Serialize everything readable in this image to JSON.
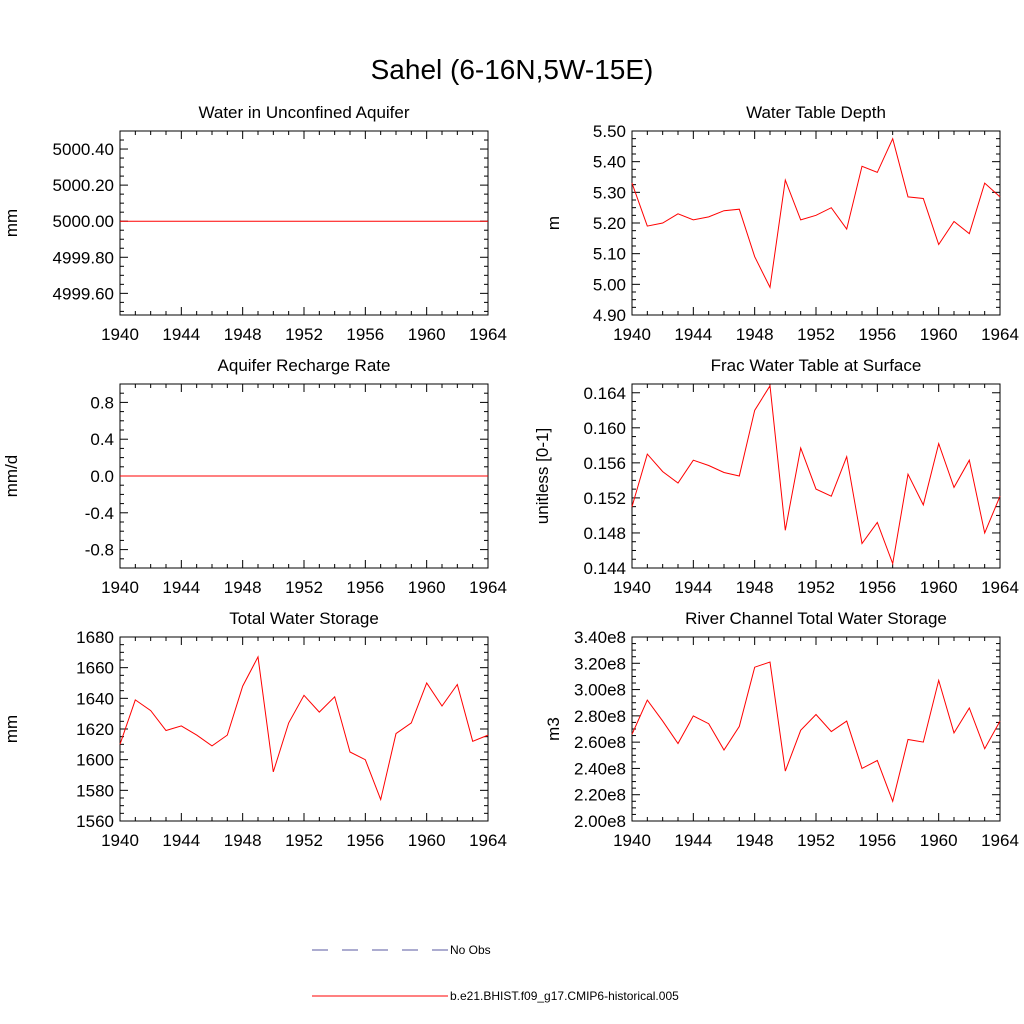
{
  "title": "Sahel (6-16N,5W-15E)",
  "colors": {
    "model": "#ff0000",
    "obs": "#5a5aa0",
    "axis": "#000000"
  },
  "legend": [
    {
      "label": "No Obs",
      "style": "dashed",
      "color": "#5a5aa0"
    },
    {
      "label": "b.e21.BHIST.f09_g17.CMIP6-historical.005",
      "style": "solid",
      "color": "#ff0000"
    }
  ],
  "chart_data": [
    {
      "type": "line",
      "title": "Water in Unconfined Aquifer",
      "ylabel": "mm",
      "xlim": [
        1940,
        1964
      ],
      "ylim": [
        4999.48,
        5000.5
      ],
      "xticks": [
        "1940",
        "1944",
        "1948",
        "1952",
        "1956",
        "1960",
        "1964"
      ],
      "yticks": [
        "4999.60",
        "4999.80",
        "5000.00",
        "5000.20",
        "5000.40"
      ],
      "x": [
        1940,
        1941,
        1942,
        1943,
        1944,
        1945,
        1946,
        1947,
        1948,
        1949,
        1950,
        1951,
        1952,
        1953,
        1954,
        1955,
        1956,
        1957,
        1958,
        1959,
        1960,
        1961,
        1962,
        1963,
        1964
      ],
      "series": [
        {
          "values": [
            5000,
            5000,
            5000,
            5000,
            5000,
            5000,
            5000,
            5000,
            5000,
            5000,
            5000,
            5000,
            5000,
            5000,
            5000,
            5000,
            5000,
            5000,
            5000,
            5000,
            5000,
            5000,
            5000,
            5000,
            5000
          ]
        }
      ]
    },
    {
      "type": "line",
      "title": "Water Table Depth",
      "ylabel": "m",
      "xlim": [
        1940,
        1964
      ],
      "ylim": [
        4.9,
        5.5
      ],
      "xticks": [
        "1940",
        "1944",
        "1948",
        "1952",
        "1956",
        "1960",
        "1964"
      ],
      "yticks": [
        "4.90",
        "5.00",
        "5.10",
        "5.20",
        "5.30",
        "5.40",
        "5.50"
      ],
      "x": [
        1940,
        1941,
        1942,
        1943,
        1944,
        1945,
        1946,
        1947,
        1948,
        1949,
        1950,
        1951,
        1952,
        1953,
        1954,
        1955,
        1956,
        1957,
        1958,
        1959,
        1960,
        1961,
        1962,
        1963,
        1964
      ],
      "series": [
        {
          "values": [
            5.33,
            5.19,
            5.2,
            5.23,
            5.21,
            5.22,
            5.24,
            5.245,
            5.09,
            4.99,
            5.34,
            5.21,
            5.225,
            5.25,
            5.18,
            5.385,
            5.365,
            5.475,
            5.285,
            5.28,
            5.13,
            5.205,
            5.165,
            5.33,
            5.285
          ]
        }
      ]
    },
    {
      "type": "line",
      "title": "Aquifer Recharge Rate",
      "ylabel": "mm/d",
      "xlim": [
        1940,
        1964
      ],
      "ylim": [
        -1.0,
        1.0
      ],
      "xticks": [
        "1940",
        "1944",
        "1948",
        "1952",
        "1956",
        "1960",
        "1964"
      ],
      "yticks": [
        "-0.8",
        "-0.4",
        "0.0",
        "0.4",
        "0.8"
      ],
      "x": [
        1940,
        1941,
        1942,
        1943,
        1944,
        1945,
        1946,
        1947,
        1948,
        1949,
        1950,
        1951,
        1952,
        1953,
        1954,
        1955,
        1956,
        1957,
        1958,
        1959,
        1960,
        1961,
        1962,
        1963,
        1964
      ],
      "series": [
        {
          "values": [
            0,
            0,
            0,
            0,
            0,
            0,
            0,
            0,
            0,
            0,
            0,
            0,
            0,
            0,
            0,
            0,
            0,
            0,
            0,
            0,
            0,
            0,
            0,
            0,
            0
          ]
        }
      ]
    },
    {
      "type": "line",
      "title": "Frac Water Table at Surface",
      "ylabel": "unitless [0-1]",
      "xlim": [
        1940,
        1964
      ],
      "ylim": [
        0.144,
        0.165
      ],
      "xticks": [
        "1940",
        "1944",
        "1948",
        "1952",
        "1956",
        "1960",
        "1964"
      ],
      "yticks": [
        "0.144",
        "0.148",
        "0.152",
        "0.156",
        "0.160",
        "0.164"
      ],
      "x": [
        1940,
        1941,
        1942,
        1943,
        1944,
        1945,
        1946,
        1947,
        1948,
        1949,
        1950,
        1951,
        1952,
        1953,
        1954,
        1955,
        1956,
        1957,
        1958,
        1959,
        1960,
        1961,
        1962,
        1963,
        1964
      ],
      "series": [
        {
          "values": [
            0.151,
            0.157,
            0.155,
            0.1537,
            0.1563,
            0.1557,
            0.1549,
            0.1545,
            0.162,
            0.1648,
            0.1483,
            0.1577,
            0.153,
            0.1522,
            0.1567,
            0.1468,
            0.1492,
            0.1445,
            0.1547,
            0.1512,
            0.1582,
            0.1532,
            0.1563,
            0.148,
            0.1522
          ]
        }
      ]
    },
    {
      "type": "line",
      "title": "Total Water Storage",
      "ylabel": "mm",
      "xlim": [
        1940,
        1964
      ],
      "ylim": [
        1560,
        1680
      ],
      "xticks": [
        "1940",
        "1944",
        "1948",
        "1952",
        "1956",
        "1960",
        "1964"
      ],
      "yticks": [
        "1560",
        "1580",
        "1600",
        "1620",
        "1640",
        "1660",
        "1680"
      ],
      "x": [
        1940,
        1941,
        1942,
        1943,
        1944,
        1945,
        1946,
        1947,
        1948,
        1949,
        1950,
        1951,
        1952,
        1953,
        1954,
        1955,
        1956,
        1957,
        1958,
        1959,
        1960,
        1961,
        1962,
        1963,
        1964
      ],
      "series": [
        {
          "values": [
            1610,
            1639,
            1632,
            1619,
            1622,
            1616,
            1609,
            1616,
            1648,
            1667,
            1592,
            1624,
            1642,
            1631,
            1641,
            1605,
            1600,
            1574,
            1617,
            1624,
            1650,
            1635,
            1649,
            1612,
            1616
          ]
        }
      ]
    },
    {
      "type": "line",
      "title": "River Channel Total Water Storage",
      "ylabel": "m3",
      "xlim": [
        1940,
        1964
      ],
      "ylim": [
        200000000,
        340000000
      ],
      "xticks": [
        "1940",
        "1944",
        "1948",
        "1952",
        "1956",
        "1960",
        "1964"
      ],
      "yticks": [
        "2.00e8",
        "2.20e8",
        "2.40e8",
        "2.60e8",
        "2.80e8",
        "3.00e8",
        "3.20e8",
        "3.40e8"
      ],
      "x": [
        1940,
        1941,
        1942,
        1943,
        1944,
        1945,
        1946,
        1947,
        1948,
        1949,
        1950,
        1951,
        1952,
        1953,
        1954,
        1955,
        1956,
        1957,
        1958,
        1959,
        1960,
        1961,
        1962,
        1963,
        1964
      ],
      "series": [
        {
          "values": [
            266000000,
            292000000,
            276000000,
            259000000,
            280000000,
            274000000,
            254000000,
            272000000,
            317000000,
            321000000,
            238000000,
            269000000,
            281000000,
            268000000,
            276000000,
            240000000,
            246000000,
            215000000,
            262000000,
            260000000,
            307000000,
            267000000,
            286000000,
            255000000,
            276000000
          ]
        }
      ]
    }
  ]
}
